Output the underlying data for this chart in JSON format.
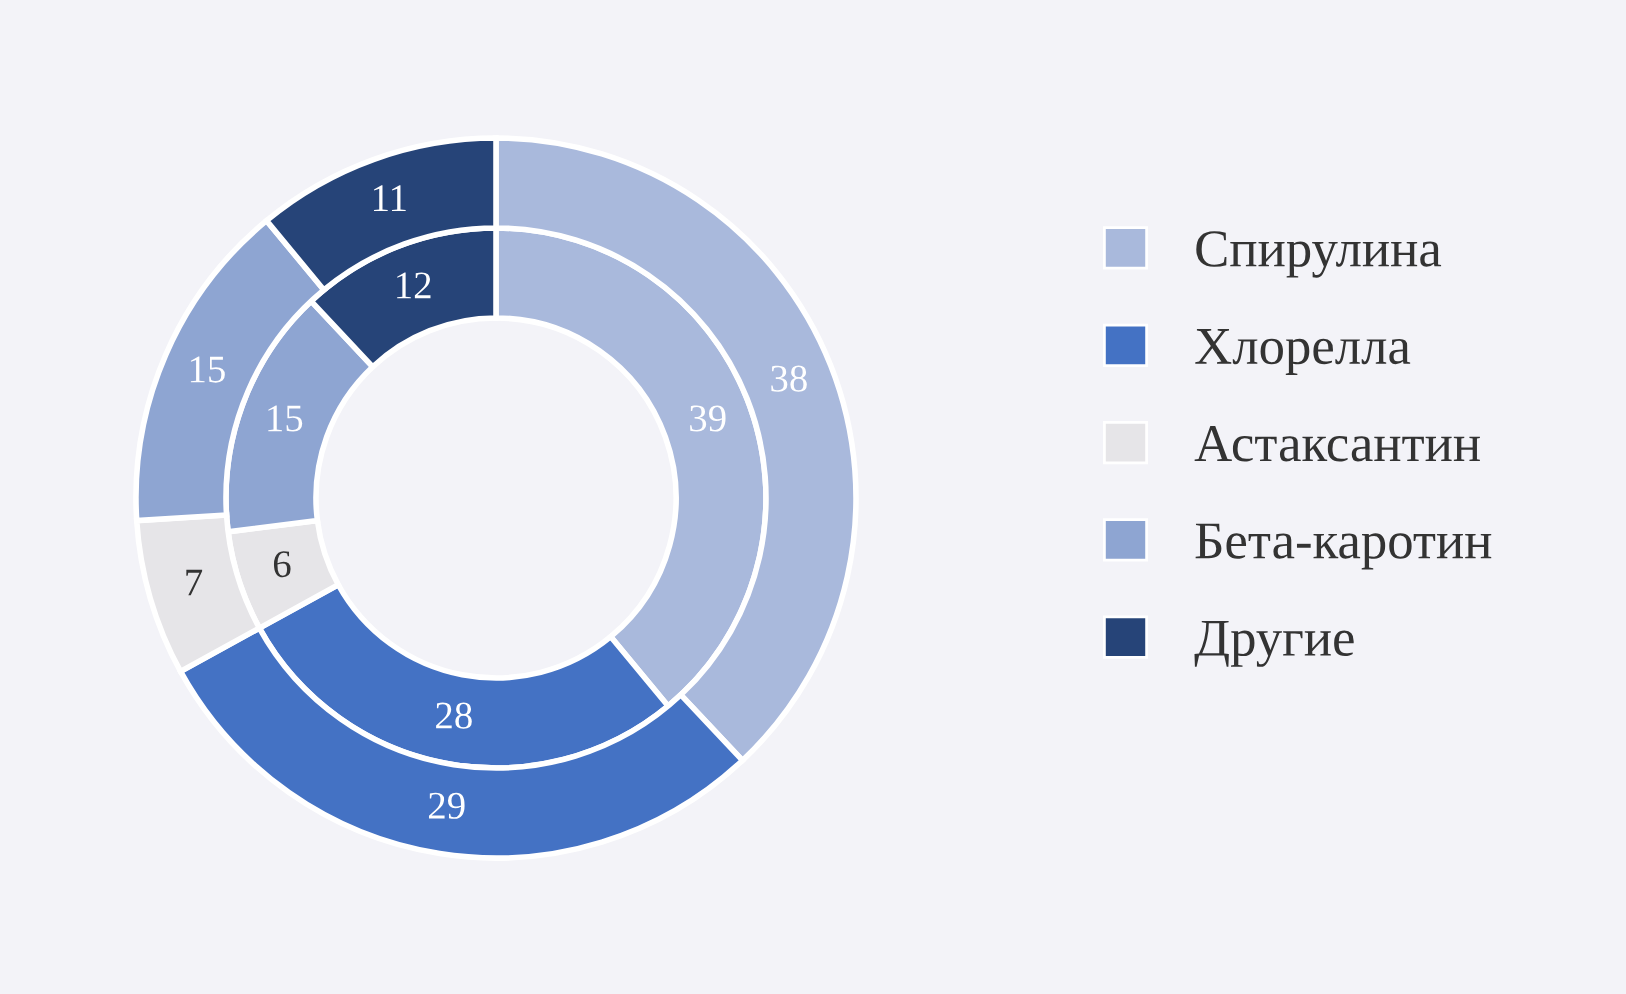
{
  "chart_data": {
    "type": "donut",
    "categories": [
      "Спирулина",
      "Хлорелла",
      "Астаксантин",
      "Бета-каротин",
      "Другие"
    ],
    "colors": [
      "#a9b9dc",
      "#4472c4",
      "#e6e5e8",
      "#8ea5d2",
      "#264478"
    ],
    "series": [
      {
        "values": [
          39,
          28,
          6,
          15,
          12
        ]
      },
      {
        "values": [
          38,
          29,
          7,
          15,
          11
        ]
      }
    ],
    "data_labels": true,
    "legend": "right"
  }
}
